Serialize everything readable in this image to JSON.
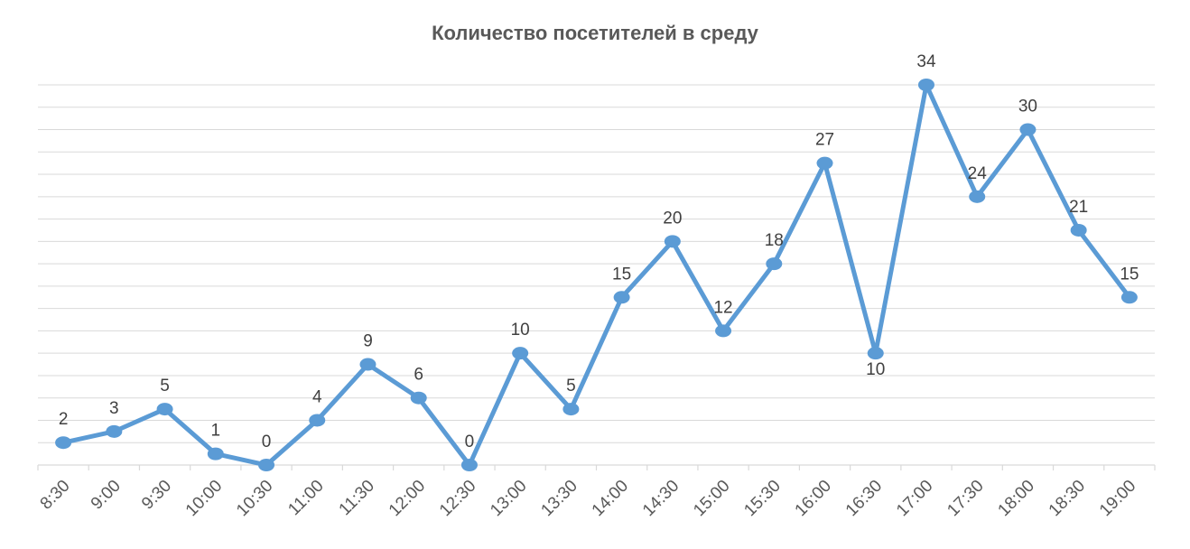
{
  "chart_data": {
    "type": "line",
    "title": "Количество посетителей в среду",
    "xlabel": "",
    "ylabel": "",
    "categories": [
      "8:30",
      "9:00",
      "9:30",
      "10:00",
      "10:30",
      "11:00",
      "11:30",
      "12:00",
      "12:30",
      "13:00",
      "13:30",
      "14:00",
      "14:30",
      "15:00",
      "15:30",
      "16:00",
      "16:30",
      "17:00",
      "17:30",
      "18:00",
      "18:30",
      "19:00"
    ],
    "series": [
      {
        "values": [
          2,
          3,
          5,
          1,
          0,
          4,
          9,
          6,
          0,
          10,
          5,
          15,
          20,
          12,
          18,
          27,
          10,
          34,
          24,
          30,
          21,
          15
        ]
      }
    ],
    "ylim": [
      0,
      34
    ],
    "y_gridline_step": 2,
    "grid": true,
    "legend": "none",
    "data_labels": true,
    "colors": {
      "series": "#5b9bd5",
      "grid": "#d9d9d9",
      "title": "#595959",
      "labels": "#404040"
    }
  }
}
